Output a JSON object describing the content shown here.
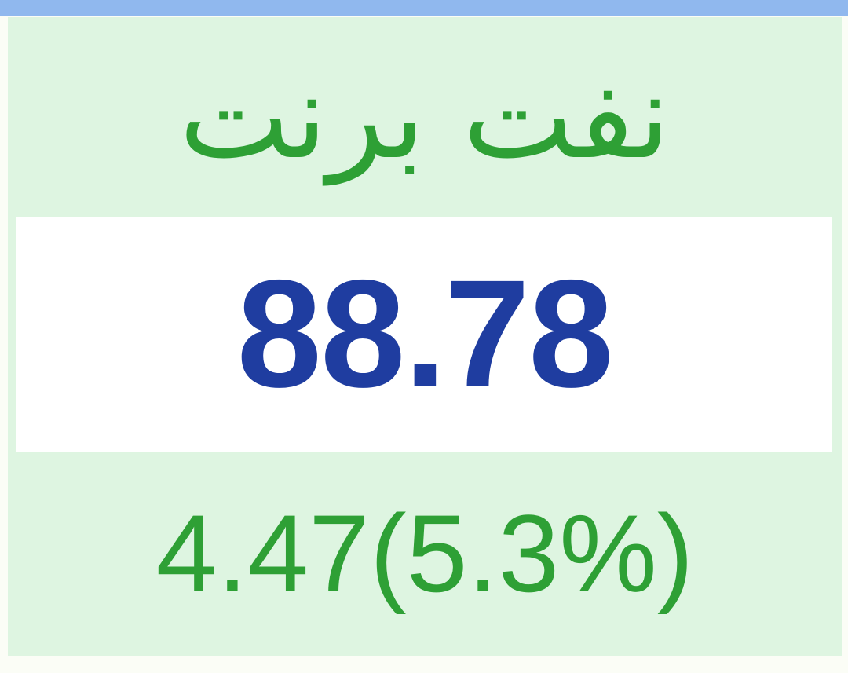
{
  "page": {
    "background_color": "#fbfdf6"
  },
  "top_bar": {
    "color": "#90b8ee"
  },
  "card": {
    "background_color": "#def5e1",
    "title": "نفت برنت",
    "title_color": "#2ea035",
    "price": "88.78",
    "price_color": "#1f3da0",
    "price_band_background": "#ffffff",
    "change": "4.47(5.3%)",
    "change_color": "#2ea035"
  }
}
